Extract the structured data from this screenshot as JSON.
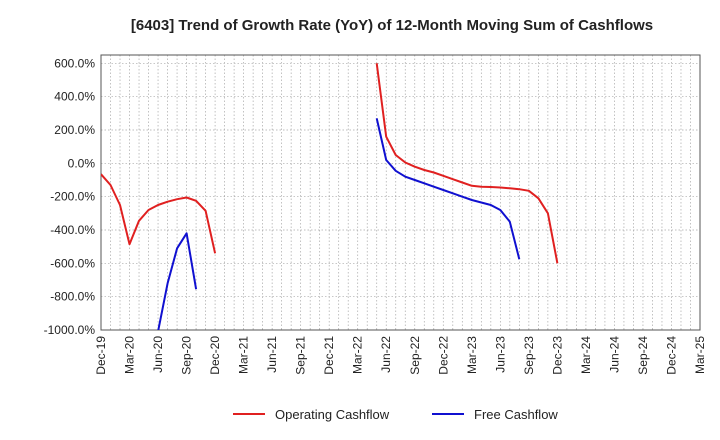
{
  "chart_data": {
    "type": "line",
    "title": "[6403]  Trend of Growth Rate (YoY) of 12-Month Moving Sum of Cashflows",
    "xlabel": "",
    "ylabel": "",
    "y_unit": "%",
    "ylim": [
      -1000,
      650
    ],
    "y_ticks": [
      600,
      400,
      200,
      0,
      -200,
      -400,
      -600,
      -800,
      -1000
    ],
    "y_tick_labels": [
      "600.0%",
      "400.0%",
      "200.0%",
      "0.0%",
      "-200.0%",
      "-400.0%",
      "-600.0%",
      "-800.0%",
      "-1000.0%"
    ],
    "x_range": [
      "2019-12",
      "2025-03"
    ],
    "x_ticks": [
      "2019-12",
      "2020-03",
      "2020-06",
      "2020-09",
      "2020-12",
      "2021-03",
      "2021-06",
      "2021-09",
      "2021-12",
      "2022-03",
      "2022-06",
      "2022-09",
      "2022-12",
      "2023-03",
      "2023-06",
      "2023-09",
      "2023-12",
      "2024-03",
      "2024-06",
      "2024-09",
      "2024-12",
      "2025-03"
    ],
    "x_tick_labels": [
      "Dec-19",
      "Mar-20",
      "Jun-20",
      "Sep-20",
      "Dec-20",
      "Mar-21",
      "Jun-21",
      "Sep-21",
      "Dec-21",
      "Mar-22",
      "Jun-22",
      "Sep-22",
      "Dec-22",
      "Mar-23",
      "Jun-23",
      "Sep-23",
      "Dec-23",
      "Mar-24",
      "Jun-24",
      "Sep-24",
      "Dec-24",
      "Mar-25"
    ],
    "grid": true,
    "legend_position": "bottom-center",
    "series": [
      {
        "name": "Operating Cashflow",
        "color": "#e02020",
        "segments": [
          [
            [
              "2019-12",
              -65
            ],
            [
              "2020-01",
              -130
            ],
            [
              "2020-02",
              -250
            ],
            [
              "2020-03",
              -485
            ],
            [
              "2020-04",
              -345
            ],
            [
              "2020-05",
              -280
            ],
            [
              "2020-06",
              -250
            ],
            [
              "2020-07",
              -230
            ],
            [
              "2020-08",
              -215
            ],
            [
              "2020-09",
              -205
            ],
            [
              "2020-10",
              -225
            ],
            [
              "2020-11",
              -285
            ],
            [
              "2020-12",
              -540
            ]
          ],
          [
            [
              "2022-05",
              600
            ],
            [
              "2022-06",
              160
            ],
            [
              "2022-07",
              50
            ],
            [
              "2022-08",
              5
            ],
            [
              "2022-09",
              -20
            ],
            [
              "2022-10",
              -40
            ],
            [
              "2022-11",
              -55
            ],
            [
              "2022-12",
              -75
            ],
            [
              "2023-01",
              -95
            ],
            [
              "2023-02",
              -115
            ],
            [
              "2023-03",
              -135
            ],
            [
              "2023-04",
              -140
            ],
            [
              "2023-05",
              -142
            ],
            [
              "2023-06",
              -145
            ],
            [
              "2023-07",
              -150
            ],
            [
              "2023-08",
              -155
            ],
            [
              "2023-09",
              -165
            ],
            [
              "2023-10",
              -210
            ],
            [
              "2023-11",
              -300
            ],
            [
              "2023-12",
              -600
            ]
          ]
        ]
      },
      {
        "name": "Free Cashflow",
        "color": "#1010d0",
        "segments": [
          [
            [
              "2020-06",
              -1010
            ],
            [
              "2020-07",
              -720
            ],
            [
              "2020-08",
              -510
            ],
            [
              "2020-09",
              -420
            ],
            [
              "2020-10",
              -755
            ]
          ],
          [
            [
              "2022-05",
              270
            ],
            [
              "2022-06",
              20
            ],
            [
              "2022-07",
              -45
            ],
            [
              "2022-08",
              -80
            ],
            [
              "2022-09",
              -100
            ],
            [
              "2022-10",
              -120
            ],
            [
              "2022-11",
              -140
            ],
            [
              "2022-12",
              -160
            ],
            [
              "2023-01",
              -180
            ],
            [
              "2023-02",
              -200
            ],
            [
              "2023-03",
              -220
            ],
            [
              "2023-04",
              -235
            ],
            [
              "2023-05",
              -250
            ],
            [
              "2023-06",
              -280
            ],
            [
              "2023-07",
              -350
            ],
            [
              "2023-08",
              -575
            ]
          ]
        ]
      }
    ]
  }
}
